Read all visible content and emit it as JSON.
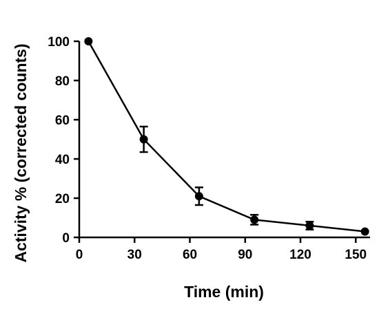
{
  "chart_data": {
    "type": "line",
    "title": "",
    "xlabel": "Time (min)",
    "ylabel": "Activity % (corrected counts)",
    "xlim": [
      0,
      157
    ],
    "ylim": [
      0,
      100
    ],
    "xticks": [
      0,
      30,
      60,
      90,
      120,
      150
    ],
    "yticks": [
      0,
      20,
      40,
      60,
      80,
      100
    ],
    "grid": false,
    "legend": "none",
    "series": [
      {
        "x": [
          5,
          35,
          65,
          95,
          125,
          155
        ],
        "y": [
          100,
          50,
          21,
          9,
          6,
          3
        ],
        "error": [
          0,
          6.5,
          4.5,
          2.5,
          2,
          0
        ],
        "color": "#000000",
        "marker": "circle"
      }
    ]
  }
}
